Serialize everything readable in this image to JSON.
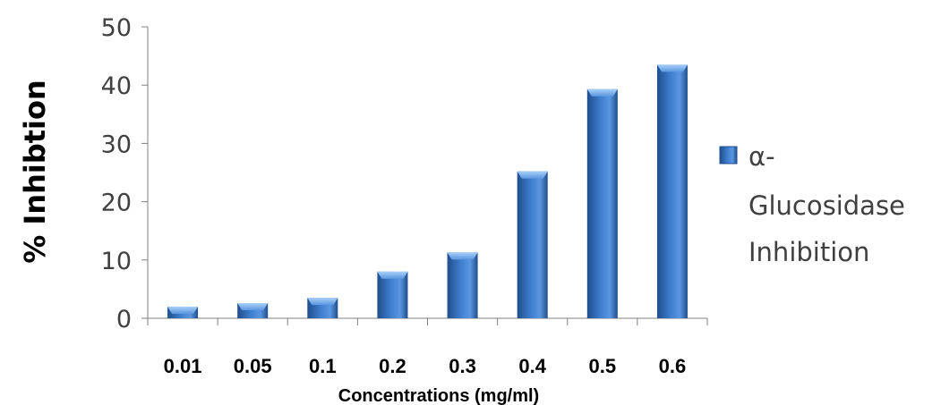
{
  "chart_data": {
    "type": "bar",
    "title": "",
    "xlabel": "Concentrations (mg/ml)",
    "ylabel": "% Inhibtion",
    "categories": [
      "0.01",
      "0.05",
      "0.1",
      "0.2",
      "0.3",
      "0.4",
      "0.5",
      "0.6"
    ],
    "series": [
      {
        "name": "α-Glucosidase Inhibition",
        "legend_lines": [
          "α-",
          "Glucosidase",
          "Inhibition"
        ],
        "values": [
          2,
          2.6,
          3.5,
          8,
          11.3,
          25.2,
          39.3,
          43.5
        ]
      }
    ],
    "ylim": [
      0,
      50
    ],
    "yticks": [
      "0",
      "10",
      "20",
      "30",
      "40",
      "50"
    ],
    "grid": false,
    "legend_position": "right",
    "colors": {
      "bar_dark": "#1f4e8c",
      "bar_mid": "#3f7fcf",
      "bar_light": "#6aa6ec",
      "bar_top": "#8cc0f4",
      "axis": "#808080"
    }
  }
}
